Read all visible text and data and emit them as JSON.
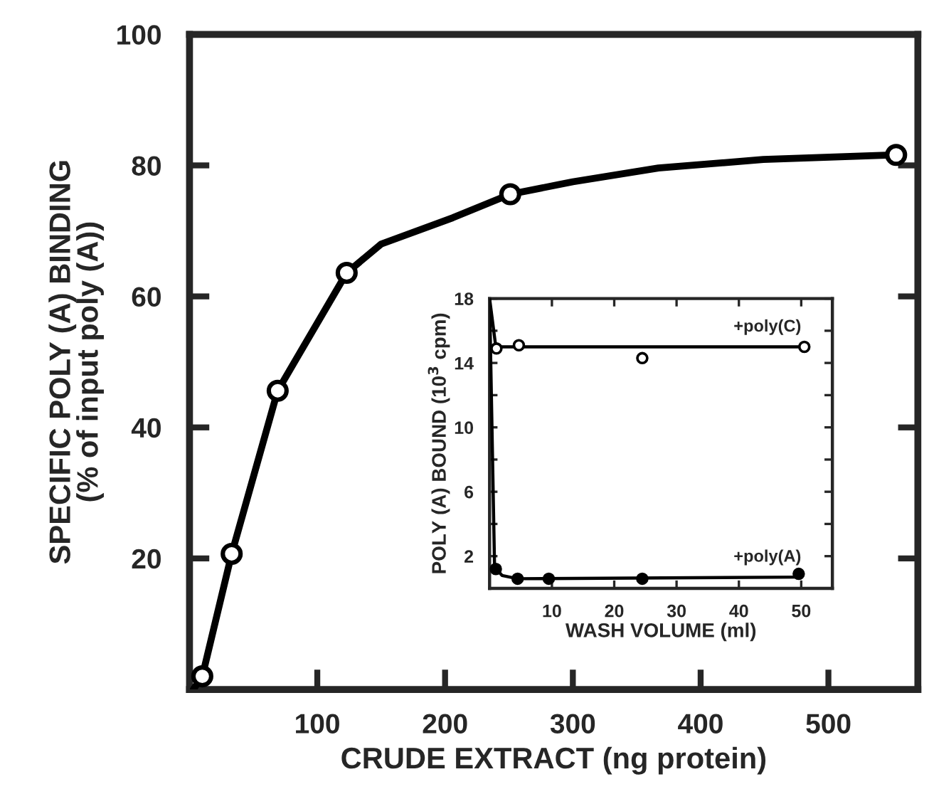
{
  "chart_data": [
    {
      "type": "line",
      "xlabel": "CRUDE EXTRACT (ng protein)",
      "ylabel": "SPECIFIC POLY (A) BINDING\n(% of input poly (A))",
      "xlim": [
        0,
        570
      ],
      "xticks": [
        100,
        200,
        300,
        400,
        500
      ],
      "ylim": [
        0,
        100
      ],
      "yticks": [
        20,
        40,
        60,
        80,
        100
      ],
      "grid": false,
      "legend": false,
      "series": [
        {
          "type": "scatter",
          "marker": "circle",
          "color": "#000000",
          "colors": [
            "#ffffff",
            "#ffffff",
            "#ffffff",
            "#ffffff",
            "#ffffff",
            "#ffffff"
          ],
          "x": [
            10,
            33,
            69,
            123,
            251,
            553
          ],
          "values": [
            2,
            20.7,
            45.6,
            63.6,
            75.6,
            81.6
          ]
        },
        {
          "marker": "none",
          "color": "#000000",
          "x": [
            3,
            10,
            33,
            69,
            123,
            150,
            206,
            251,
            300,
            367,
            449,
            553
          ],
          "values": [
            0,
            2,
            20.7,
            45.6,
            63.6,
            68,
            72,
            75.6,
            77.5,
            79.6,
            80.9,
            81.6
          ]
        }
      ]
    },
    {
      "type": "line",
      "xlabel": "WASH VOLUME (ml)",
      "ylabel": "POLY (A) BOUND (10$^{3}$ cpm)",
      "xlim": [
        0,
        55
      ],
      "xticks": [
        10,
        20,
        30,
        40,
        50
      ],
      "ylim": [
        0,
        18
      ],
      "yticks": [
        2,
        {
          "value": 4,
          "label": null
        },
        6,
        {
          "value": 8,
          "label": null
        },
        10,
        {
          "value": 12,
          "label": null
        },
        14,
        {
          "value": 16,
          "label": null
        },
        18
      ],
      "grid": false,
      "legend": false,
      "series": [
        {
          "name": "+poly(C)",
          "marker": "none",
          "color": "#000000",
          "x": [
            0,
            1,
            50
          ],
          "values": [
            18,
            15,
            15
          ]
        },
        {
          "type": "scatter",
          "marker": "circle",
          "color": "#000000",
          "colors": [
            "#ffffff",
            "#ffffff",
            "#ffffff",
            "#ffffff"
          ],
          "x": [
            1.1,
            4.7,
            24.5,
            50.5
          ],
          "values": [
            14.9,
            15.1,
            14.3,
            15.0
          ]
        },
        {
          "name": "+poly(A)",
          "marker": "none",
          "color": "#000000",
          "x": [
            0,
            0.8,
            2,
            4.5,
            50
          ],
          "values": [
            18,
            1.3,
            0.8,
            0.6,
            0.7
          ]
        },
        {
          "type": "scatter",
          "marker": "circle",
          "color": "#000000",
          "colors": [
            "#000000",
            "#000000",
            "#000000",
            "#000000",
            "#000000"
          ],
          "x": [
            1,
            4.5,
            9.5,
            24.5,
            49.6
          ],
          "values": [
            1.2,
            0.6,
            0.6,
            0.6,
            0.9
          ]
        }
      ]
    }
  ]
}
